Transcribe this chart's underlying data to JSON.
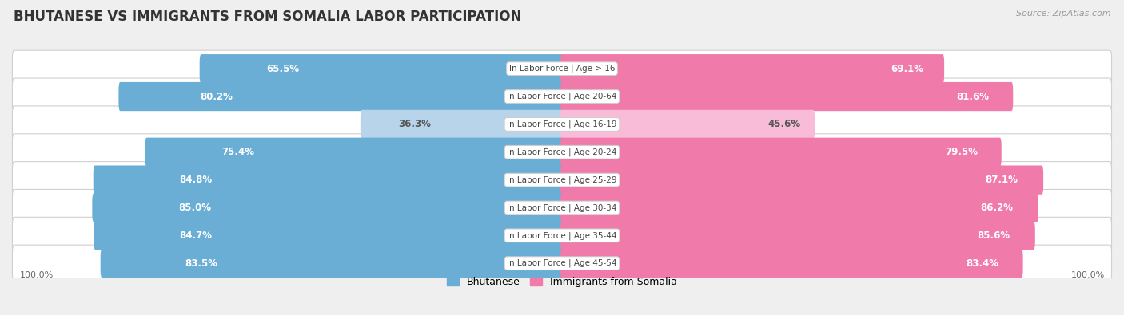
{
  "title": "BHUTANESE VS IMMIGRANTS FROM SOMALIA LABOR PARTICIPATION",
  "source": "Source: ZipAtlas.com",
  "categories": [
    "In Labor Force | Age > 16",
    "In Labor Force | Age 20-64",
    "In Labor Force | Age 16-19",
    "In Labor Force | Age 20-24",
    "In Labor Force | Age 25-29",
    "In Labor Force | Age 30-34",
    "In Labor Force | Age 35-44",
    "In Labor Force | Age 45-54"
  ],
  "bhutanese": [
    65.5,
    80.2,
    36.3,
    75.4,
    84.8,
    85.0,
    84.7,
    83.5
  ],
  "somalia": [
    69.1,
    81.6,
    45.6,
    79.5,
    87.1,
    86.2,
    85.6,
    83.4
  ],
  "bhutanese_color": "#6aaed6",
  "somalia_color": "#f07aaa",
  "bhutanese_light_color": "#b8d4ea",
  "somalia_light_color": "#f9bcd8",
  "row_bg_color": "#e8e8e8",
  "bg_color": "#efefef",
  "max_value": 100.0,
  "title_fontsize": 12,
  "label_fontsize": 8.5,
  "category_fontsize": 7.5,
  "axis_label_fontsize": 8,
  "legend_fontsize": 9
}
